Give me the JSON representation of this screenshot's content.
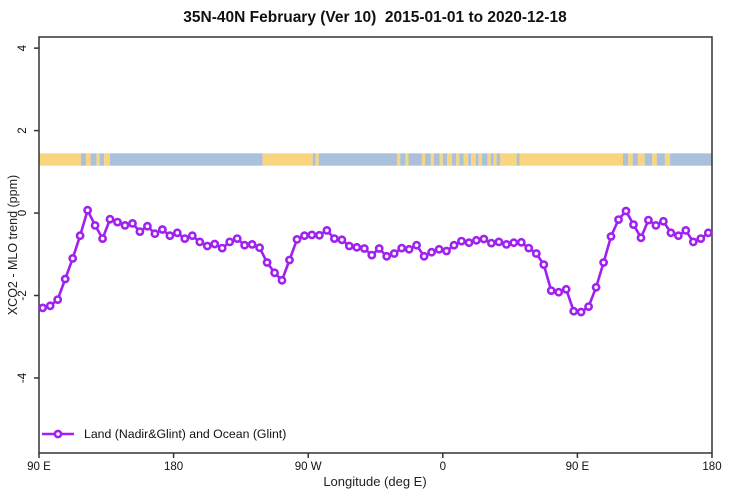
{
  "title": "35N-40N February (Ver 10)  2015-01-01 to 2020-12-18",
  "chart_data": {
    "type": "line",
    "title": "35N-40N February (Ver 10)  2015-01-01 to 2020-12-18",
    "xlabel": "Longitude (deg E)",
    "ylabel": "XCO2 - MLO trend (ppm)",
    "x_domain": [
      90,
      540
    ],
    "y_domain": [
      -5.82,
      4.27
    ],
    "grid": "off",
    "x_ticks": [
      {
        "value": 90,
        "label": "90 E"
      },
      {
        "value": 180,
        "label": "180"
      },
      {
        "value": 270,
        "label": "90 W"
      },
      {
        "value": 360,
        "label": "0"
      },
      {
        "value": 450,
        "label": "90 E"
      },
      {
        "value": 540,
        "label": "180"
      }
    ],
    "y_ticks": [
      {
        "value": 4,
        "label": "4"
      },
      {
        "value": 2,
        "label": "2"
      },
      {
        "value": 0,
        "label": "0"
      },
      {
        "value": -2,
        "label": "-2"
      },
      {
        "value": -4,
        "label": "-4"
      }
    ],
    "series": [
      {
        "name": "Land (Nadir&Glint) and Ocean (Glint)",
        "color": "#A020F0",
        "marker": "open-circle",
        "x_start": 92.5,
        "x_step": 5,
        "values": [
          -2.3,
          -2.25,
          -2.1,
          -1.6,
          -1.1,
          -0.55,
          0.07,
          -0.3,
          -0.62,
          -0.15,
          -0.22,
          -0.3,
          -0.25,
          -0.45,
          -0.32,
          -0.5,
          -0.4,
          -0.55,
          -0.48,
          -0.62,
          -0.55,
          -0.7,
          -0.8,
          -0.75,
          -0.85,
          -0.7,
          -0.62,
          -0.78,
          -0.76,
          -0.84,
          -1.2,
          -1.45,
          -1.63,
          -1.14,
          -0.64,
          -0.55,
          -0.53,
          -0.54,
          -0.42,
          -0.62,
          -0.65,
          -0.8,
          -0.83,
          -0.86,
          -1.02,
          -0.86,
          -1.05,
          -0.98,
          -0.85,
          -0.88,
          -0.78,
          -1.05,
          -0.95,
          -0.88,
          -0.92,
          -0.78,
          -0.68,
          -0.72,
          -0.66,
          -0.63,
          -0.73,
          -0.7,
          -0.76,
          -0.72,
          -0.71,
          -0.85,
          -0.98,
          -1.25,
          -1.88,
          -1.92,
          -1.85,
          -2.38,
          -2.4,
          -2.27,
          -1.8,
          -1.2,
          -0.57,
          -0.16,
          0.05,
          -0.28,
          -0.6,
          -0.17,
          -0.3,
          -0.2,
          -0.48,
          -0.55,
          -0.42,
          -0.7,
          -0.62,
          -0.48
        ]
      }
    ],
    "surface_band": {
      "y_range": [
        1.15,
        1.45
      ],
      "colors": {
        "land": "#FAD57F",
        "ocean": "#ABC0DB"
      },
      "segments": [
        {
          "from": 90,
          "to": 118,
          "type": "land"
        },
        {
          "from": 118,
          "to": 121.5,
          "type": "ocean"
        },
        {
          "from": 121.5,
          "to": 124.5,
          "type": "land"
        },
        {
          "from": 124.5,
          "to": 128.5,
          "type": "ocean"
        },
        {
          "from": 128.5,
          "to": 130.5,
          "type": "land"
        },
        {
          "from": 130.5,
          "to": 133.5,
          "type": "ocean"
        },
        {
          "from": 133.5,
          "to": 137.5,
          "type": "land"
        },
        {
          "from": 137.5,
          "to": 239.5,
          "type": "ocean"
        },
        {
          "from": 239.5,
          "to": 273,
          "type": "land"
        },
        {
          "from": 273,
          "to": 275,
          "type": "ocean"
        },
        {
          "from": 275,
          "to": 277,
          "type": "land"
        },
        {
          "from": 277,
          "to": 329.5,
          "type": "ocean"
        },
        {
          "from": 329.5,
          "to": 331.5,
          "type": "land"
        },
        {
          "from": 331.5,
          "to": 335,
          "type": "ocean"
        },
        {
          "from": 335,
          "to": 337,
          "type": "land"
        },
        {
          "from": 337,
          "to": 346,
          "type": "ocean"
        },
        {
          "from": 346,
          "to": 348,
          "type": "land"
        },
        {
          "from": 348,
          "to": 352,
          "type": "ocean"
        },
        {
          "from": 352,
          "to": 354,
          "type": "land"
        },
        {
          "from": 354,
          "to": 358,
          "type": "ocean"
        },
        {
          "from": 358,
          "to": 360,
          "type": "land"
        },
        {
          "from": 360,
          "to": 363,
          "type": "ocean"
        },
        {
          "from": 363,
          "to": 366,
          "type": "land"
        },
        {
          "from": 366,
          "to": 369,
          "type": "ocean"
        },
        {
          "from": 369,
          "to": 371,
          "type": "land"
        },
        {
          "from": 371,
          "to": 374,
          "type": "ocean"
        },
        {
          "from": 374,
          "to": 377,
          "type": "land"
        },
        {
          "from": 377,
          "to": 379,
          "type": "ocean"
        },
        {
          "from": 379,
          "to": 382,
          "type": "land"
        },
        {
          "from": 382,
          "to": 384,
          "type": "ocean"
        },
        {
          "from": 384,
          "to": 386,
          "type": "land"
        },
        {
          "from": 386,
          "to": 390,
          "type": "ocean"
        },
        {
          "from": 390,
          "to": 392,
          "type": "land"
        },
        {
          "from": 392,
          "to": 394,
          "type": "ocean"
        },
        {
          "from": 394,
          "to": 396,
          "type": "land"
        },
        {
          "from": 396,
          "to": 398.5,
          "type": "ocean"
        },
        {
          "from": 398.5,
          "to": 409.5,
          "type": "land"
        },
        {
          "from": 409.5,
          "to": 411.5,
          "type": "ocean"
        },
        {
          "from": 411.5,
          "to": 480.5,
          "type": "land"
        },
        {
          "from": 480.5,
          "to": 484,
          "type": "ocean"
        },
        {
          "from": 484,
          "to": 487,
          "type": "land"
        },
        {
          "from": 487,
          "to": 490.5,
          "type": "ocean"
        },
        {
          "from": 490.5,
          "to": 495,
          "type": "land"
        },
        {
          "from": 495,
          "to": 500,
          "type": "ocean"
        },
        {
          "from": 500,
          "to": 503,
          "type": "land"
        },
        {
          "from": 503,
          "to": 508.5,
          "type": "ocean"
        },
        {
          "from": 508.5,
          "to": 512,
          "type": "land"
        },
        {
          "from": 512,
          "to": 540,
          "type": "ocean"
        }
      ]
    },
    "legend": {
      "position": "bottom-left",
      "entries": [
        {
          "label": "Land (Nadir&Glint) and Ocean (Glint)",
          "color": "#A020F0",
          "marker": "open-circle"
        }
      ]
    }
  }
}
